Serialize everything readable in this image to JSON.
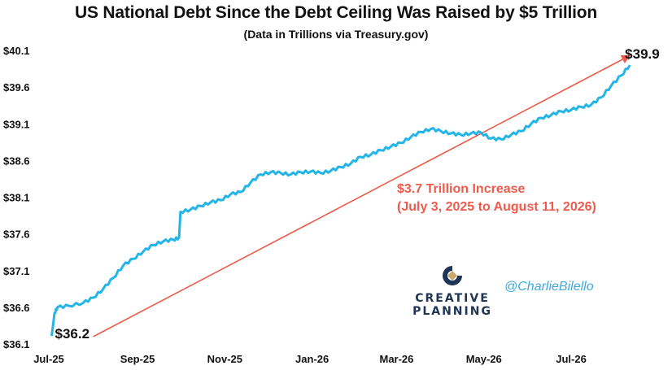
{
  "chart_data": {
    "type": "line",
    "title": "US National Debt Since the Debt Ceiling Was Raised by $5 Trillion",
    "subtitle": "(Data in Trillions via Treasury.gov)",
    "xlabel": "",
    "ylabel": "",
    "x_range": [
      "2025-07-01",
      "2026-08-20"
    ],
    "ylim": [
      36.1,
      40.1
    ],
    "y_ticks": [
      "$36.1",
      "$36.6",
      "$37.1",
      "$37.6",
      "$38.1",
      "$38.6",
      "$39.1",
      "$39.6",
      "$40.1"
    ],
    "y_tick_values": [
      36.1,
      36.6,
      37.1,
      37.6,
      38.1,
      38.6,
      39.1,
      39.6,
      40.1
    ],
    "x_ticks": [
      {
        "date": "2025-07-01",
        "label": "Jul-25"
      },
      {
        "date": "2025-09-01",
        "label": "Sep-25"
      },
      {
        "date": "2025-11-01",
        "label": "Nov-25"
      },
      {
        "date": "2026-01-01",
        "label": "Jan-26"
      },
      {
        "date": "2026-03-01",
        "label": "Mar-26"
      },
      {
        "date": "2026-05-01",
        "label": "May-26"
      },
      {
        "date": "2026-07-01",
        "label": "Jul-26"
      }
    ],
    "grid": false,
    "series": [
      {
        "color": "#23b4e8",
        "points": [
          [
            "2025-07-03",
            36.21
          ],
          [
            "2025-07-05",
            36.52
          ],
          [
            "2025-07-07",
            36.6
          ],
          [
            "2025-07-15",
            36.62
          ],
          [
            "2025-07-25",
            36.66
          ],
          [
            "2025-08-01",
            36.73
          ],
          [
            "2025-08-08",
            36.85
          ],
          [
            "2025-08-15",
            37.0
          ],
          [
            "2025-08-22",
            37.17
          ],
          [
            "2025-08-29",
            37.26
          ],
          [
            "2025-09-05",
            37.36
          ],
          [
            "2025-09-12",
            37.45
          ],
          [
            "2025-09-19",
            37.5
          ],
          [
            "2025-09-26",
            37.52
          ],
          [
            "2025-09-30",
            37.55
          ],
          [
            "2025-10-01",
            37.9
          ],
          [
            "2025-10-08",
            37.93
          ],
          [
            "2025-10-15",
            37.98
          ],
          [
            "2025-10-22",
            38.03
          ],
          [
            "2025-10-29",
            38.06
          ],
          [
            "2025-11-05",
            38.14
          ],
          [
            "2025-11-12",
            38.17
          ],
          [
            "2025-11-19",
            38.3
          ],
          [
            "2025-11-26",
            38.41
          ],
          [
            "2025-12-03",
            38.44
          ],
          [
            "2025-12-10",
            38.43
          ],
          [
            "2025-12-17",
            38.41
          ],
          [
            "2025-12-24",
            38.44
          ],
          [
            "2025-12-31",
            38.45
          ],
          [
            "2026-01-07",
            38.43
          ],
          [
            "2026-01-14",
            38.46
          ],
          [
            "2026-01-21",
            38.51
          ],
          [
            "2026-01-28",
            38.56
          ],
          [
            "2026-02-04",
            38.65
          ],
          [
            "2026-02-11",
            38.68
          ],
          [
            "2026-02-18",
            38.74
          ],
          [
            "2026-02-25",
            38.79
          ],
          [
            "2026-03-04",
            38.84
          ],
          [
            "2026-03-11",
            38.92
          ],
          [
            "2026-03-18",
            38.99
          ],
          [
            "2026-03-25",
            39.03
          ],
          [
            "2026-04-01",
            39.0
          ],
          [
            "2026-04-08",
            38.97
          ],
          [
            "2026-04-15",
            38.95
          ],
          [
            "2026-04-22",
            38.97
          ],
          [
            "2026-04-29",
            38.98
          ],
          [
            "2026-05-06",
            38.9
          ],
          [
            "2026-05-13",
            38.89
          ],
          [
            "2026-05-20",
            38.95
          ],
          [
            "2026-05-27",
            39.0
          ],
          [
            "2026-06-03",
            39.1
          ],
          [
            "2026-06-10",
            39.18
          ],
          [
            "2026-06-17",
            39.22
          ],
          [
            "2026-06-24",
            39.27
          ],
          [
            "2026-07-01",
            39.29
          ],
          [
            "2026-07-08",
            39.33
          ],
          [
            "2026-07-15",
            39.36
          ],
          [
            "2026-07-22",
            39.46
          ],
          [
            "2026-07-29",
            39.62
          ],
          [
            "2026-08-05",
            39.76
          ],
          [
            "2026-08-11",
            39.9
          ]
        ]
      }
    ],
    "start_label": "$36.2",
    "end_label": "$39.9",
    "arrow": {
      "from": [
        "2025-08-01",
        36.2
      ],
      "to": [
        "2026-08-11",
        40.03
      ],
      "color": "#ef5a4a"
    },
    "annotation": {
      "line1": "$3.7 Trillion Increase",
      "line2": "(July 3, 2025 to August 11, 2026)",
      "color": "#ef5a4a"
    }
  },
  "branding": {
    "logo_text_line1": "CREATIVE",
    "logo_text_line2": "PLANNING",
    "handle": "@CharlieBilello"
  }
}
